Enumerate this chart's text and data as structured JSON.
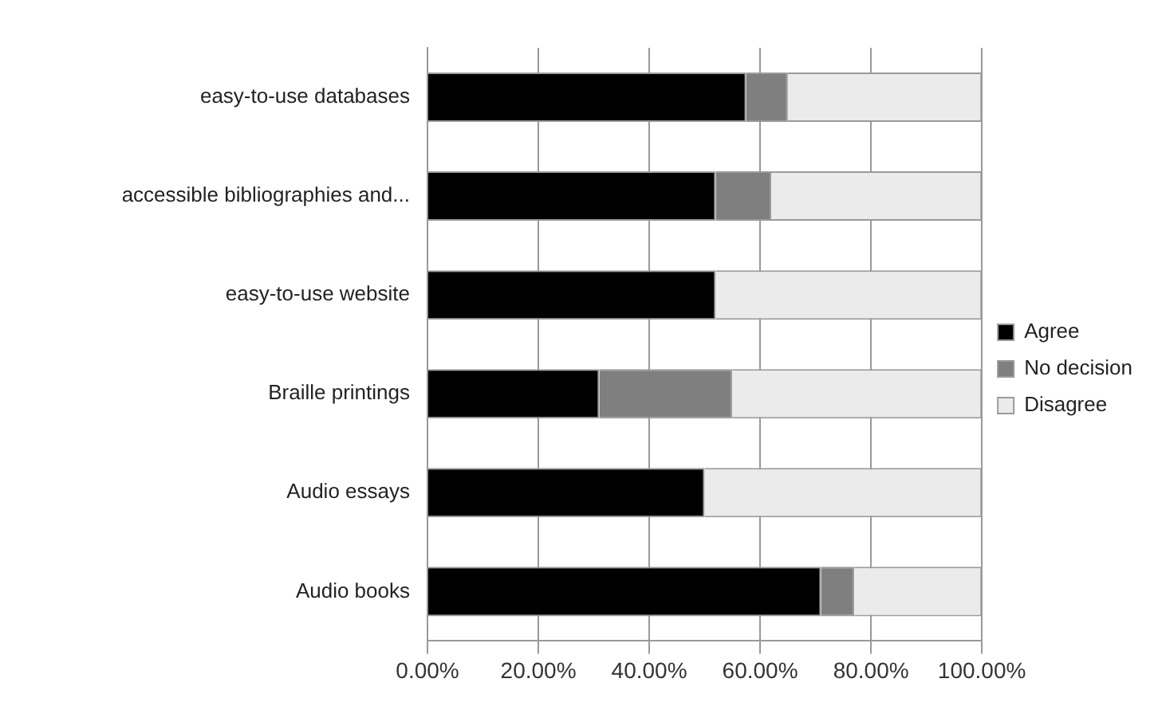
{
  "chart_data": {
    "type": "bar",
    "orientation": "horizontal",
    "stacked": true,
    "categories": [
      "easy-to-use databases",
      "accessible bibliographies and...",
      "easy-to-use website",
      "Braille printings",
      "Audio essays",
      "Audio books"
    ],
    "series": [
      {
        "name": "Agree",
        "color": "#000000",
        "values": [
          57.5,
          52,
          52,
          31,
          50,
          71
        ]
      },
      {
        "name": "No decision",
        "color": "#7f7f7f",
        "values": [
          7.5,
          10,
          0,
          24,
          0,
          6
        ]
      },
      {
        "name": "Disagree",
        "color": "#ebebeb",
        "values": [
          35,
          38,
          48,
          45,
          50,
          23
        ]
      }
    ],
    "xlim": [
      0,
      100
    ],
    "xticks": [
      {
        "value": 0,
        "label": "0.00%"
      },
      {
        "value": 20,
        "label": "20.00%"
      },
      {
        "value": 40,
        "label": "40.00%"
      },
      {
        "value": 60,
        "label": "60.00%"
      },
      {
        "value": 80,
        "label": "80.00%"
      },
      {
        "value": 100,
        "label": "100.00%"
      }
    ],
    "grid": "x",
    "legend": "right"
  }
}
